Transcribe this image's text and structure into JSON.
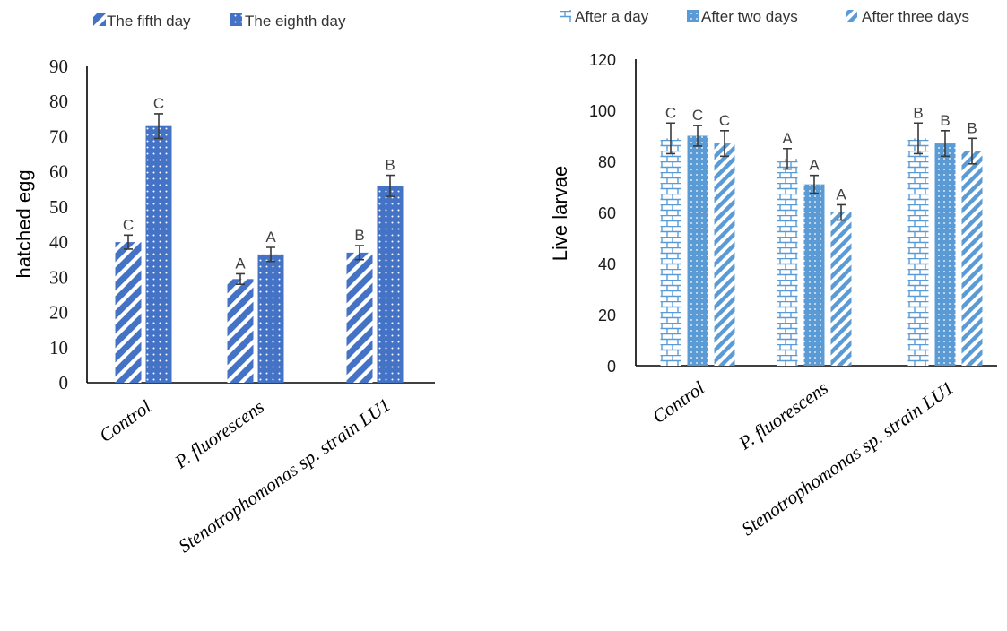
{
  "chart_data": [
    {
      "type": "bar",
      "title": "",
      "xlabel": "",
      "ylabel": "hatched egg",
      "ylim": [
        0,
        90
      ],
      "yticks": [
        0,
        10,
        20,
        30,
        40,
        50,
        60,
        70,
        80,
        90
      ],
      "categories": [
        "Control",
        "P. fluorescens",
        "Stenotrophomonas sp. strain LU1"
      ],
      "grid": false,
      "legend_position": "top-left",
      "series": [
        {
          "name": "The fifth day",
          "pattern": "diagonal-stripes",
          "color": "#4472C4",
          "values": [
            40,
            29.5,
            37
          ],
          "errors": [
            2,
            1.5,
            2
          ],
          "significance": [
            "C",
            "A",
            "B"
          ]
        },
        {
          "name": "The eighth day",
          "pattern": "dots",
          "color": "#4472C4",
          "values": [
            73,
            36.5,
            56
          ],
          "errors": [
            3.5,
            2,
            3
          ],
          "significance": [
            "C",
            "A",
            "B"
          ]
        }
      ]
    },
    {
      "type": "bar",
      "title": "",
      "xlabel": "",
      "ylabel": "Live larvae",
      "ylim": [
        0,
        120
      ],
      "yticks": [
        0,
        20,
        40,
        60,
        80,
        100,
        120
      ],
      "categories": [
        "Control",
        "P. fluorescens",
        "Stenotrophomonas sp. strain LU1"
      ],
      "grid": false,
      "legend_position": "top",
      "series": [
        {
          "name": "After a day",
          "pattern": "brick",
          "color": "#5B9BD5",
          "values": [
            89,
            81,
            89
          ],
          "errors": [
            6,
            4,
            6
          ],
          "significance": [
            "C",
            "A",
            "B"
          ]
        },
        {
          "name": "After two days",
          "pattern": "dots",
          "color": "#5B9BD5",
          "values": [
            90,
            71,
            87
          ],
          "errors": [
            4,
            3.5,
            5
          ],
          "significance": [
            "C",
            "A",
            "B"
          ]
        },
        {
          "name": "After three days",
          "pattern": "wide-diagonal",
          "color": "#5B9BD5",
          "values": [
            87,
            60,
            84
          ],
          "errors": [
            5,
            3,
            5
          ],
          "significance": [
            "C",
            "A",
            "B"
          ]
        }
      ]
    }
  ]
}
